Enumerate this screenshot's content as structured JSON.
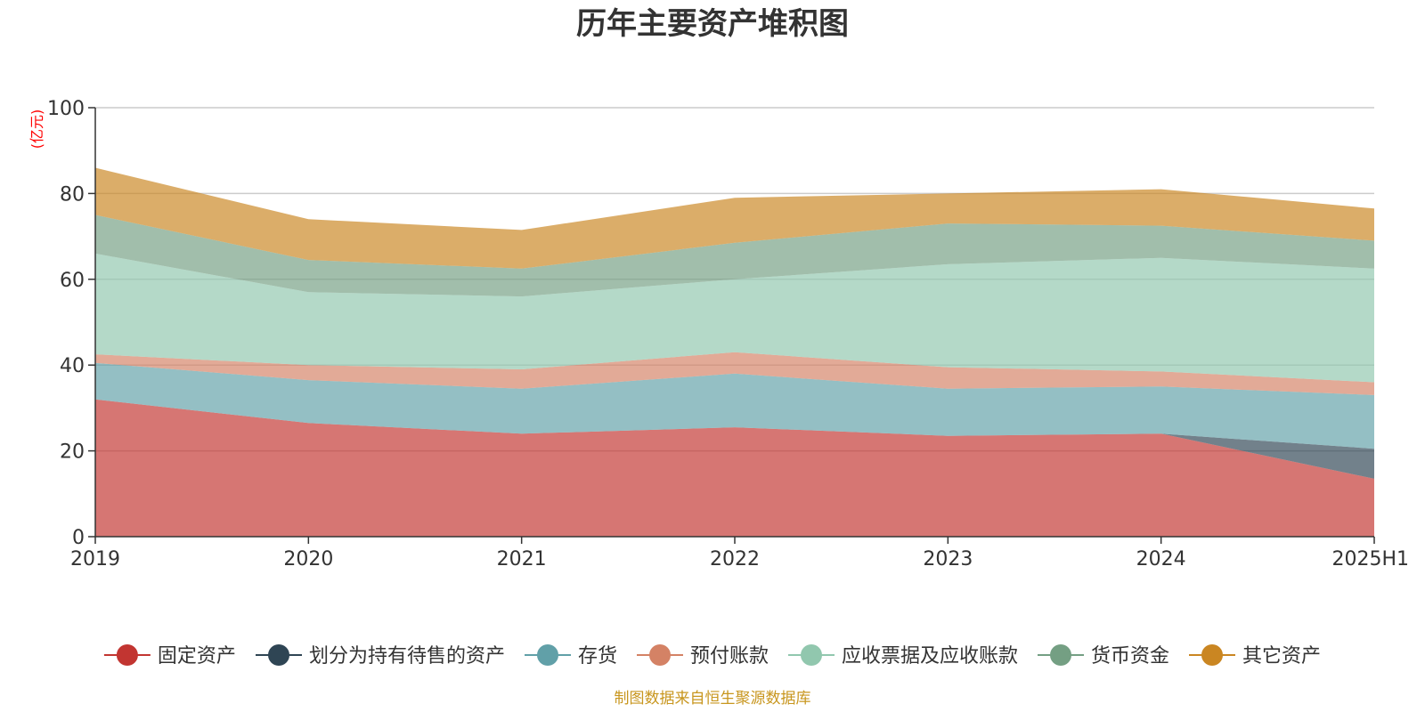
{
  "chart_data": {
    "type": "area",
    "stacked": true,
    "title": "历年主要资产堆积图",
    "unit": "(亿元)",
    "x": [
      "2019",
      "2020",
      "2021",
      "2022",
      "2023",
      "2024",
      "2025H1"
    ],
    "ylim": [
      0,
      100
    ],
    "yticks": [
      "0",
      "20",
      "40",
      "60",
      "80",
      "100"
    ],
    "grid": true,
    "legend_position": "bottom",
    "series": [
      {
        "name": "固定资产",
        "color": "#c23531",
        "values": [
          32,
          26.5,
          24,
          25.5,
          23.5,
          24,
          13.5
        ]
      },
      {
        "name": "划分为持有待售的资产",
        "color": "#2f4554",
        "values": [
          0,
          0,
          0,
          0,
          0,
          0,
          7
        ]
      },
      {
        "name": "存货",
        "color": "#61a0a8",
        "values": [
          8.5,
          10,
          10.5,
          12.5,
          11,
          11,
          12.5
        ]
      },
      {
        "name": "预付账款",
        "color": "#d48265",
        "values": [
          2,
          3.5,
          4.5,
          5,
          5,
          3.5,
          3
        ]
      },
      {
        "name": "应收票据及应收账款",
        "color": "#91c7ae",
        "values": [
          23.5,
          17,
          17,
          17,
          24,
          26.5,
          26.5
        ]
      },
      {
        "name": "货币资金",
        "color": "#749f83",
        "values": [
          9,
          7.5,
          6.5,
          8.5,
          9.5,
          7.5,
          6.5
        ]
      },
      {
        "name": "其它资产",
        "color": "#ca8622",
        "values": [
          11,
          9.5,
          9,
          10.5,
          7,
          8.5,
          7.5
        ]
      }
    ]
  },
  "footer": "制图数据来自恒生聚源数据库"
}
